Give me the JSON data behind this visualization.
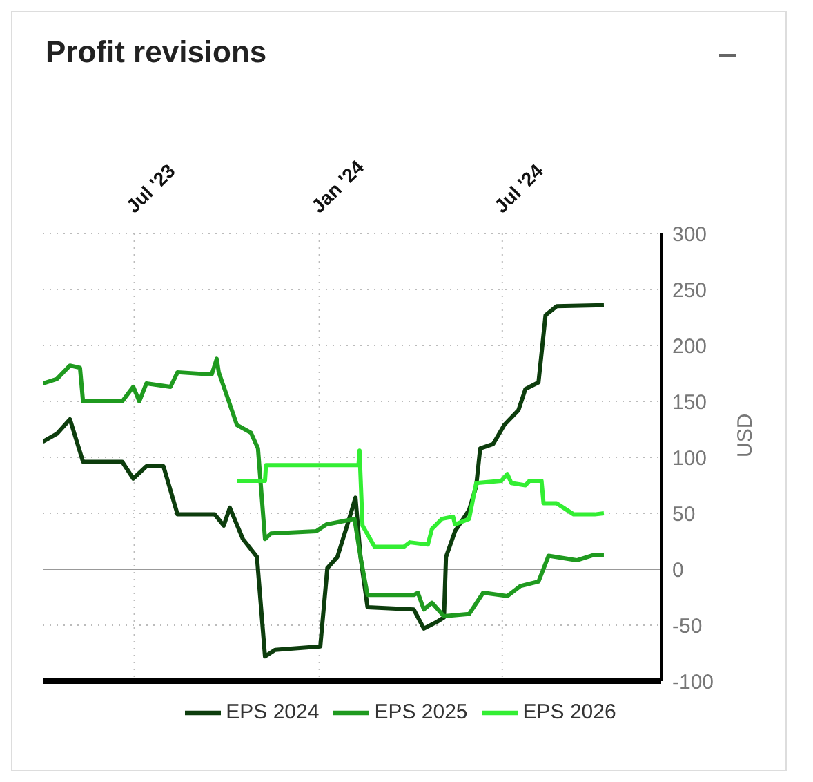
{
  "chart_data": {
    "type": "line",
    "title": "Profit revisions",
    "ylabel": "USD",
    "xlim": [
      "2023-04-01",
      "2024-12-06"
    ],
    "xticks": [
      {
        "value": "2023-07-01",
        "label": "Jul '23"
      },
      {
        "value": "2024-01-01",
        "label": "Jan '24"
      },
      {
        "value": "2024-07-01",
        "label": "Jul '24"
      }
    ],
    "ylim": [
      -100,
      300
    ],
    "yticks": [
      -100,
      -50,
      0,
      50,
      100,
      150,
      200,
      250,
      300
    ],
    "grid": true,
    "legend": "bottom",
    "marker": "none",
    "line_style": "solid",
    "ref_lines": [
      {
        "axis": "y",
        "value": 0,
        "color": "#999999"
      }
    ],
    "series": [
      {
        "name": "EPS 2024",
        "color": "#0d3d0d",
        "x": [
          "2023-04-01",
          "2023-04-15",
          "2023-04-28",
          "2023-05-11",
          "2023-06-19",
          "2023-06-30",
          "2023-07-13",
          "2023-07-30",
          "2023-08-13",
          "2023-09-19",
          "2023-09-28",
          "2023-10-04",
          "2023-10-17",
          "2023-10-31",
          "2023-11-08",
          "2023-11-18",
          "2024-01-02",
          "2024-01-09",
          "2024-01-19",
          "2024-01-29",
          "2024-02-06",
          "2024-02-11",
          "2024-02-18",
          "2024-04-04",
          "2024-04-14",
          "2024-04-27",
          "2024-05-04",
          "2024-05-06",
          "2024-05-15",
          "2024-05-29",
          "2024-06-05",
          "2024-06-09",
          "2024-06-22",
          "2024-07-03",
          "2024-07-17",
          "2024-07-24",
          "2024-08-06",
          "2024-08-13",
          "2024-08-24",
          "2024-10-10"
        ],
        "values": [
          114,
          121,
          134,
          96,
          96,
          81,
          92,
          92,
          49,
          49,
          39,
          55,
          27,
          11,
          -78,
          -72,
          -69,
          1,
          11,
          40,
          64,
          11,
          -34,
          -36,
          -53,
          -47,
          -43,
          11,
          34,
          53,
          74,
          108,
          112,
          129,
          142,
          161,
          167,
          227,
          235,
          236
        ]
      },
      {
        "name": "EPS 2025",
        "color": "#1f9a1f",
        "x": [
          "2023-04-01",
          "2023-04-15",
          "2023-04-28",
          "2023-05-08",
          "2023-05-11",
          "2023-06-19",
          "2023-06-30",
          "2023-07-06",
          "2023-07-13",
          "2023-08-06",
          "2023-08-13",
          "2023-09-16",
          "2023-09-21",
          "2023-09-23",
          "2023-10-03",
          "2023-10-11",
          "2023-10-25",
          "2023-11-01",
          "2023-11-08",
          "2023-11-14",
          "2023-12-29",
          "2024-01-08",
          "2024-02-05",
          "2024-02-11",
          "2024-02-18",
          "2024-04-04",
          "2024-04-08",
          "2024-04-14",
          "2024-04-22",
          "2024-05-04",
          "2024-05-29",
          "2024-06-12",
          "2024-07-06",
          "2024-07-19",
          "2024-08-06",
          "2024-08-16",
          "2024-09-13",
          "2024-10-01",
          "2024-10-10"
        ],
        "values": [
          166,
          170,
          182,
          180,
          150,
          150,
          163,
          150,
          166,
          163,
          176,
          174,
          188,
          176,
          150,
          129,
          122,
          108,
          27,
          32,
          34,
          40,
          45,
          11,
          -23,
          -23,
          -21,
          -36,
          -30,
          -42,
          -40,
          -21,
          -24,
          -15,
          -11,
          12,
          8,
          13,
          13
        ]
      },
      {
        "name": "EPS 2026",
        "color": "#33ee33",
        "x": [
          "2023-10-11",
          "2023-11-08",
          "2023-11-09",
          "2024-02-09",
          "2024-02-10",
          "2024-02-13",
          "2024-02-25",
          "2024-03-25",
          "2024-03-31",
          "2024-04-18",
          "2024-04-22",
          "2024-05-02",
          "2024-05-13",
          "2024-05-15",
          "2024-05-29",
          "2024-06-05",
          "2024-06-30",
          "2024-07-06",
          "2024-07-10",
          "2024-07-24",
          "2024-07-28",
          "2024-08-09",
          "2024-08-11",
          "2024-08-24",
          "2024-09-10",
          "2024-10-01",
          "2024-10-10"
        ],
        "values": [
          79,
          79,
          93,
          93,
          106,
          39,
          20,
          20,
          24,
          22,
          36,
          45,
          47,
          40,
          45,
          77,
          79,
          85,
          77,
          75,
          79,
          79,
          59,
          59,
          49,
          49,
          50
        ]
      }
    ]
  }
}
